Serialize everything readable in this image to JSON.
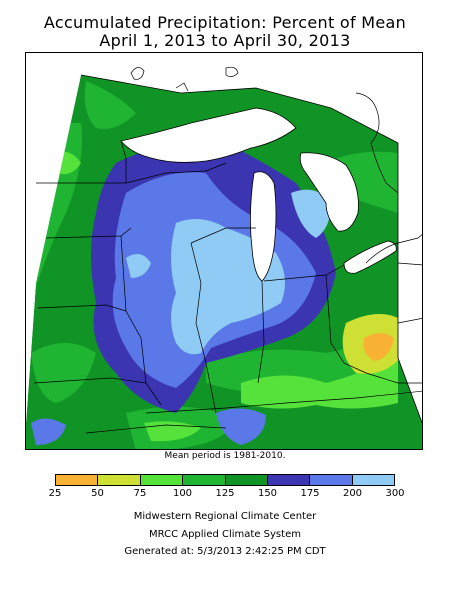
{
  "title": {
    "line1": "Accumulated Precipitation: Percent of Mean",
    "line2": "April 1, 2013 to April 30, 2013"
  },
  "mean_period": "Mean period is 1981-2010.",
  "legend": {
    "colors": [
      "#f9b233",
      "#cde033",
      "#55e23a",
      "#20b433",
      "#109425",
      "#3b35b2",
      "#5a78e8",
      "#8fcbf5"
    ],
    "ticks": [
      "25",
      "50",
      "75",
      "100",
      "125",
      "150",
      "175",
      "200",
      "300"
    ]
  },
  "footer": {
    "line1": "Midwestern Regional Climate Center",
    "line2": "MRCC Applied Climate System",
    "line3": "Generated at: 5/3/2013 2:42:25 PM CDT"
  }
}
